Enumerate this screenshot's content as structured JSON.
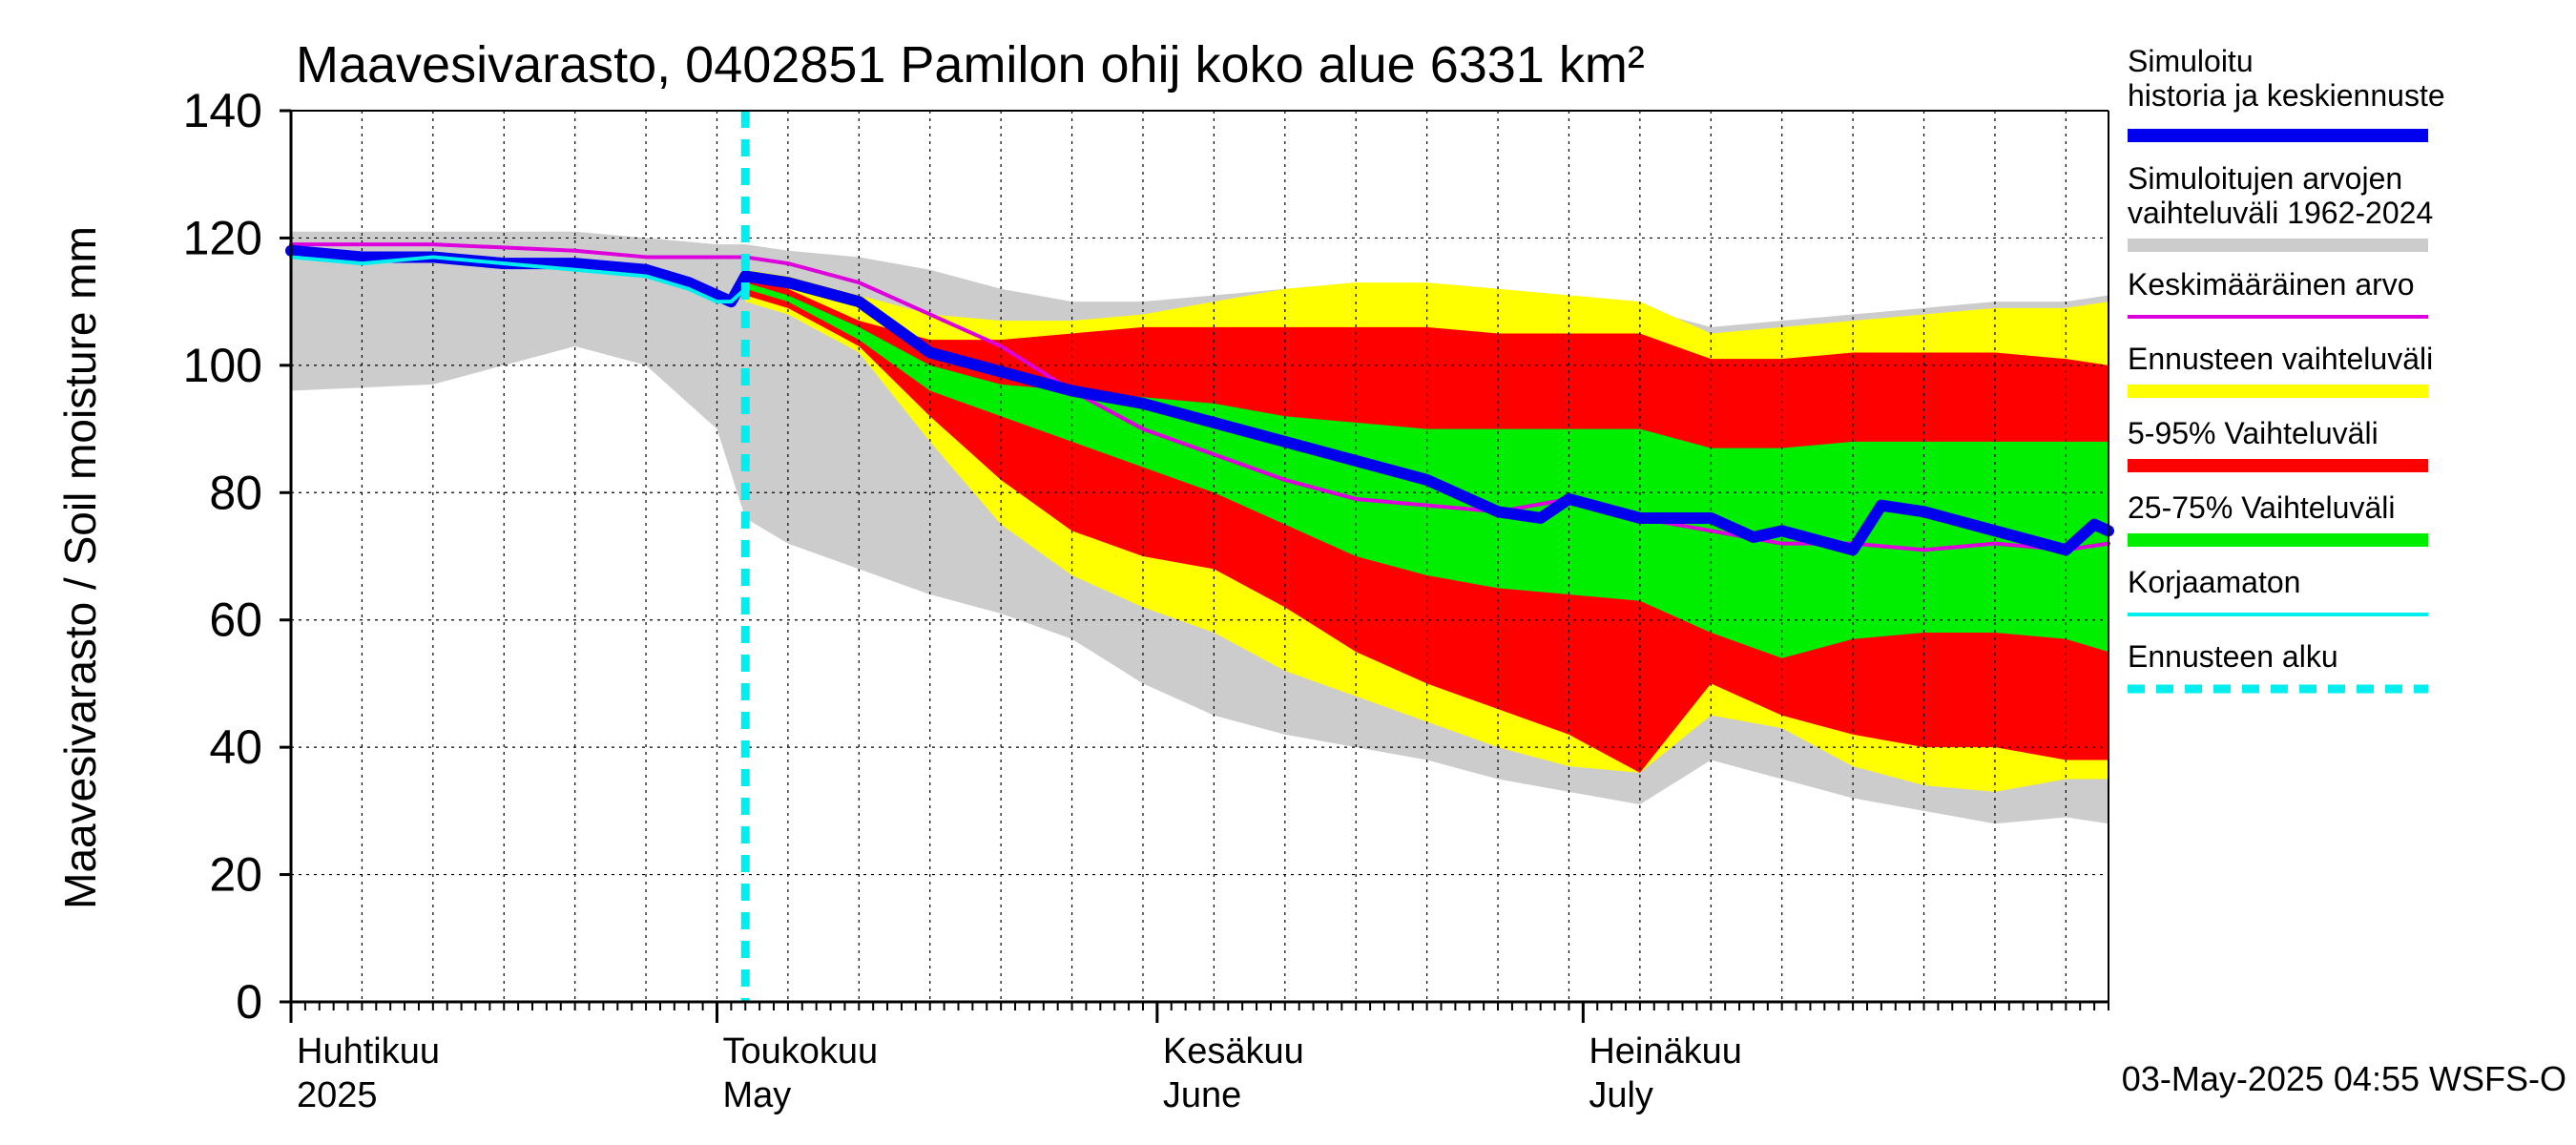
{
  "chart_data": {
    "type": "area",
    "title": "Maavesivarasto, 0402851 Pamilon ohij koko alue 6331 km²",
    "ylabel": "Maavesivarasto / Soil moisture   mm",
    "ylim": [
      0,
      140
    ],
    "yticks": [
      0,
      20,
      40,
      60,
      80,
      100,
      120,
      140
    ],
    "xlim_days": [
      0,
      128
    ],
    "month_labels": [
      {
        "fi": "Huhtikuu",
        "en": "2025",
        "day": 0
      },
      {
        "fi": "Toukokuu",
        "en": "May",
        "day": 30
      },
      {
        "fi": "Kesäkuu",
        "en": "June",
        "day": 61
      },
      {
        "fi": "Heinäkuu",
        "en": "July",
        "day": 91
      }
    ],
    "forecast_start_day": 32,
    "footer": "03-May-2025 04:55 WSFS-O",
    "legend": [
      {
        "label": "Simuloitu historia ja keskiennuste",
        "color": "#0000ee",
        "style": "thick"
      },
      {
        "label": "Simuloitujen arvojen vaihteluväli 1962-2024",
        "color": "#cccccc",
        "style": "thick"
      },
      {
        "label": "Keskimääräinen arvo",
        "color": "#dd00dd",
        "style": "thin"
      },
      {
        "label": "Ennusteen vaihteluväli",
        "color": "#ffff00",
        "style": "thick"
      },
      {
        "label": "5-95% Vaihteluväli",
        "color": "#ff0000",
        "style": "thick"
      },
      {
        "label": "25-75% Vaihteluväli",
        "color": "#00ee00",
        "style": "thick"
      },
      {
        "label": "Korjaamaton",
        "color": "#00eeee",
        "style": "thin"
      },
      {
        "label": "Ennusteen alku",
        "color": "#00eeee",
        "style": "dashed"
      }
    ],
    "series": [
      {
        "name": "hist_range",
        "color": "#cccccc",
        "x": [
          0,
          10,
          20,
          25,
          30,
          32,
          35,
          40,
          45,
          50,
          55,
          60,
          65,
          70,
          75,
          80,
          85,
          90,
          95,
          100,
          105,
          110,
          115,
          120,
          125,
          128
        ],
        "upper": [
          121,
          121,
          121,
          120,
          119,
          119,
          118,
          117,
          115,
          112,
          110,
          110,
          111,
          112,
          113,
          112,
          111,
          111,
          109,
          106,
          107,
          108,
          109,
          110,
          110,
          111
        ],
        "lower": [
          96,
          97,
          103,
          100,
          90,
          76,
          72,
          68,
          64,
          61,
          57,
          50,
          45,
          42,
          40,
          38,
          35,
          33,
          31,
          38,
          35,
          32,
          30,
          28,
          29,
          28
        ]
      },
      {
        "name": "forecast_range",
        "color": "#ffff00",
        "x": [
          32,
          35,
          40,
          45,
          50,
          55,
          60,
          65,
          70,
          75,
          80,
          85,
          90,
          95,
          100,
          105,
          110,
          115,
          120,
          125,
          128
        ],
        "upper": [
          115,
          114,
          111,
          108,
          107,
          107,
          108,
          110,
          112,
          113,
          113,
          112,
          111,
          110,
          105,
          106,
          107,
          108,
          109,
          109,
          110
        ],
        "lower": [
          110,
          108,
          102,
          88,
          75,
          67,
          62,
          58,
          52,
          48,
          44,
          40,
          37,
          36,
          45,
          43,
          37,
          34,
          33,
          35,
          35
        ]
      },
      {
        "name": "p5_95",
        "color": "#ff0000",
        "x": [
          32,
          35,
          40,
          45,
          50,
          55,
          60,
          65,
          70,
          75,
          80,
          85,
          90,
          95,
          100,
          105,
          110,
          115,
          120,
          125,
          128
        ],
        "upper": [
          114,
          112,
          107,
          104,
          104,
          105,
          106,
          106,
          106,
          106,
          106,
          105,
          105,
          105,
          101,
          101,
          102,
          102,
          102,
          101,
          100
        ],
        "lower": [
          111,
          109,
          103,
          92,
          82,
          74,
          70,
          68,
          62,
          55,
          50,
          46,
          42,
          36,
          50,
          45,
          42,
          40,
          40,
          38,
          38
        ]
      },
      {
        "name": "p25_75",
        "color": "#00ee00",
        "x": [
          32,
          35,
          40,
          45,
          50,
          55,
          60,
          65,
          70,
          75,
          80,
          85,
          90,
          95,
          100,
          105,
          110,
          115,
          120,
          125,
          128
        ],
        "upper": [
          113,
          111,
          106,
          100,
          97,
          96,
          95,
          94,
          92,
          91,
          90,
          90,
          90,
          90,
          87,
          87,
          88,
          88,
          88,
          88,
          88
        ],
        "lower": [
          112,
          110,
          104,
          96,
          92,
          88,
          84,
          80,
          75,
          70,
          67,
          65,
          64,
          63,
          58,
          54,
          57,
          58,
          58,
          57,
          55
        ]
      },
      {
        "name": "mean_line",
        "color": "#dd00dd",
        "x": [
          0,
          10,
          20,
          25,
          30,
          32,
          35,
          40,
          45,
          50,
          55,
          60,
          65,
          70,
          75,
          80,
          85,
          90,
          95,
          100,
          105,
          110,
          115,
          120,
          125,
          128
        ],
        "y": [
          119,
          119,
          118,
          117,
          117,
          117,
          116,
          113,
          108,
          103,
          96,
          90,
          86,
          82,
          79,
          78,
          77,
          79,
          76,
          74,
          72,
          72,
          71,
          72,
          71,
          72
        ]
      },
      {
        "name": "uncorrected",
        "color": "#00eeee",
        "x": [
          0,
          5,
          10,
          15,
          20,
          25,
          28,
          30,
          31,
          32
        ],
        "y": [
          117,
          116,
          117,
          116,
          115,
          114,
          112,
          110,
          110,
          112
        ]
      },
      {
        "name": "sim_median",
        "color": "#0000ee",
        "x": [
          0,
          5,
          10,
          15,
          20,
          25,
          28,
          30,
          31,
          32,
          35,
          40,
          45,
          50,
          55,
          60,
          65,
          70,
          75,
          80,
          85,
          88,
          90,
          95,
          100,
          103,
          105,
          110,
          112,
          115,
          120,
          125,
          127,
          128
        ],
        "y": [
          118,
          117,
          117,
          116,
          116,
          115,
          113,
          111,
          110,
          114,
          113,
          110,
          102,
          99,
          96,
          94,
          91,
          88,
          85,
          82,
          77,
          76,
          79,
          76,
          76,
          73,
          74,
          71,
          78,
          77,
          74,
          71,
          75,
          74
        ]
      }
    ]
  }
}
